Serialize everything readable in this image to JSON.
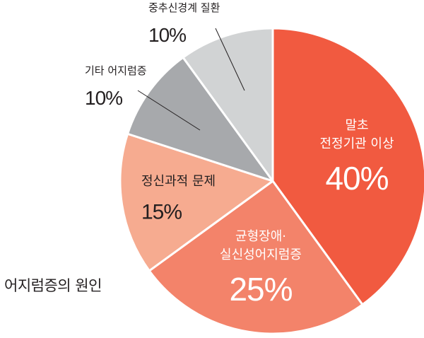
{
  "chart_data": {
    "type": "pie",
    "title": "어지럼증의 원인",
    "slices": [
      {
        "label_lines": [
          "말초",
          "전정기관 이상"
        ],
        "value": 40,
        "value_label": "40%",
        "color": "#f15a40"
      },
      {
        "label_lines": [
          "균형장애·",
          "실신성어지럼증"
        ],
        "value": 25,
        "value_label": "25%",
        "color": "#f3836a"
      },
      {
        "label_lines": [
          "정신과적 문제"
        ],
        "value": 15,
        "value_label": "15%",
        "color": "#f6ab90"
      },
      {
        "label_lines": [
          "기타 어지럼증"
        ],
        "value": 10,
        "value_label": "10%",
        "color": "#a7a9ac"
      },
      {
        "label_lines": [
          "중추신경계 질환"
        ],
        "value": 10,
        "value_label": "10%",
        "color": "#d1d3d4"
      }
    ]
  }
}
